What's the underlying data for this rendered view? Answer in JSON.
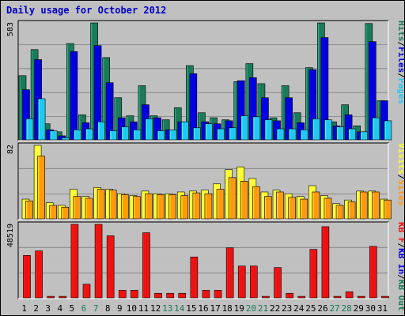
{
  "chart_data": {
    "title": "Daily usage for October 2012",
    "type": "bar",
    "categories": [
      "1",
      "2",
      "3",
      "4",
      "5",
      "6",
      "7",
      "8",
      "9",
      "10",
      "11",
      "12",
      "13",
      "14",
      "15",
      "16",
      "17",
      "18",
      "19",
      "20",
      "21",
      "22",
      "23",
      "24",
      "25",
      "26",
      "27",
      "28",
      "29",
      "30",
      "31"
    ],
    "weekend_days": [
      "6",
      "7",
      "13",
      "14",
      "20",
      "21",
      "27",
      "28"
    ],
    "colors": {
      "hits": "#1a7a5a",
      "files": "#0000e0",
      "pages": "#22c8f0",
      "visits": "#ffff33",
      "sites": "#ff9a10",
      "kbytes": "#ee1111",
      "weekday": "#000000",
      "weekend": "#1a7a5a",
      "title": "#0000c8"
    },
    "panels": [
      {
        "name": "hits-files-pages",
        "ymax_label": "583",
        "ylim": [
          0,
          583
        ],
        "legend": [
          {
            "text": "Hits",
            "color": "#1a7a5a"
          },
          {
            "text": "/",
            "color": "#000000"
          },
          {
            "text": "Files",
            "color": "#0000e0"
          },
          {
            "text": "/",
            "color": "#000000"
          },
          {
            "text": "Pages",
            "color": "#22c8f0"
          }
        ],
        "series": [
          {
            "name": "Hits",
            "color": "#1a7a5a",
            "values": [
              320,
              450,
              80,
              40,
              480,
              125,
              583,
              410,
              210,
              120,
              270,
              120,
              100,
              160,
              370,
              135,
              110,
              100,
              290,
              380,
              280,
              110,
              270,
              135,
              360,
              583,
              90,
              175,
              70,
              580,
              195
            ]
          },
          {
            "name": "Files",
            "color": "#0000e0",
            "values": [
              250,
              400,
              50,
              20,
              440,
              85,
              470,
              285,
              110,
              90,
              175,
              110,
              50,
              90,
              330,
              90,
              80,
              95,
              295,
              310,
              210,
              95,
              210,
              85,
              350,
              510,
              70,
              125,
              40,
              490,
              195
            ]
          },
          {
            "name": "Pages",
            "color": "#22c8f0",
            "values": [
              105,
              205,
              45,
              10,
              50,
              55,
              90,
              45,
              65,
              50,
              105,
              45,
              50,
              90,
              60,
              80,
              55,
              60,
              120,
              115,
              100,
              55,
              55,
              50,
              105,
              100,
              65,
              55,
              40,
              110,
              95
            ]
          }
        ]
      },
      {
        "name": "visits-sites",
        "ymax_label": "82",
        "ylim": [
          0,
          82
        ],
        "legend": [
          {
            "text": "Visits",
            "color": "#ffff33"
          },
          {
            "text": "/",
            "color": "#000000"
          },
          {
            "text": "Sites",
            "color": "#ff9a10"
          }
        ],
        "series": [
          {
            "name": "Visits",
            "color": "#ffff33",
            "values": [
              22,
              82,
              18,
              15,
              33,
              25,
              35,
              33,
              28,
              26,
              31,
              28,
              28,
              30,
              31,
              32,
              39,
              55,
              58,
              45,
              30,
              32,
              28,
              25,
              37,
              26,
              17,
              21,
              31,
              31,
              22
            ]
          },
          {
            "name": "Sites",
            "color": "#ff9a10",
            "values": [
              20,
              70,
              15,
              13,
              25,
              23,
              33,
              32,
              27,
              25,
              28,
              27,
              27,
              26,
              29,
              28,
              33,
              46,
              42,
              36,
              25,
              30,
              24,
              22,
              30,
              23,
              15,
              19,
              30,
              30,
              21
            ]
          }
        ]
      },
      {
        "name": "kbytes",
        "ymax_label": "48519",
        "ylim": [
          0,
          48519
        ],
        "legend": [
          {
            "text": "KB F",
            "color": "#ee1111"
          },
          {
            "text": "/",
            "color": "#000000"
          },
          {
            "text": "KB In",
            "color": "#0000e0"
          },
          {
            "text": "/",
            "color": "#000000"
          },
          {
            "text": "KB Out",
            "color": "#1a7a5a"
          }
        ],
        "series": [
          {
            "name": "KB F",
            "color": "#ee1111",
            "values": [
              28000,
              31000,
              1000,
              1000,
              48519,
              9000,
              48519,
              41000,
              5000,
              5000,
              43000,
              3000,
              3000,
              3000,
              27000,
              5000,
              5000,
              33000,
              21000,
              21000,
              1000,
              20000,
              3000,
              1000,
              32000,
              47000,
              1000,
              4000,
              1000,
              34000,
              1000
            ]
          }
        ]
      }
    ]
  }
}
